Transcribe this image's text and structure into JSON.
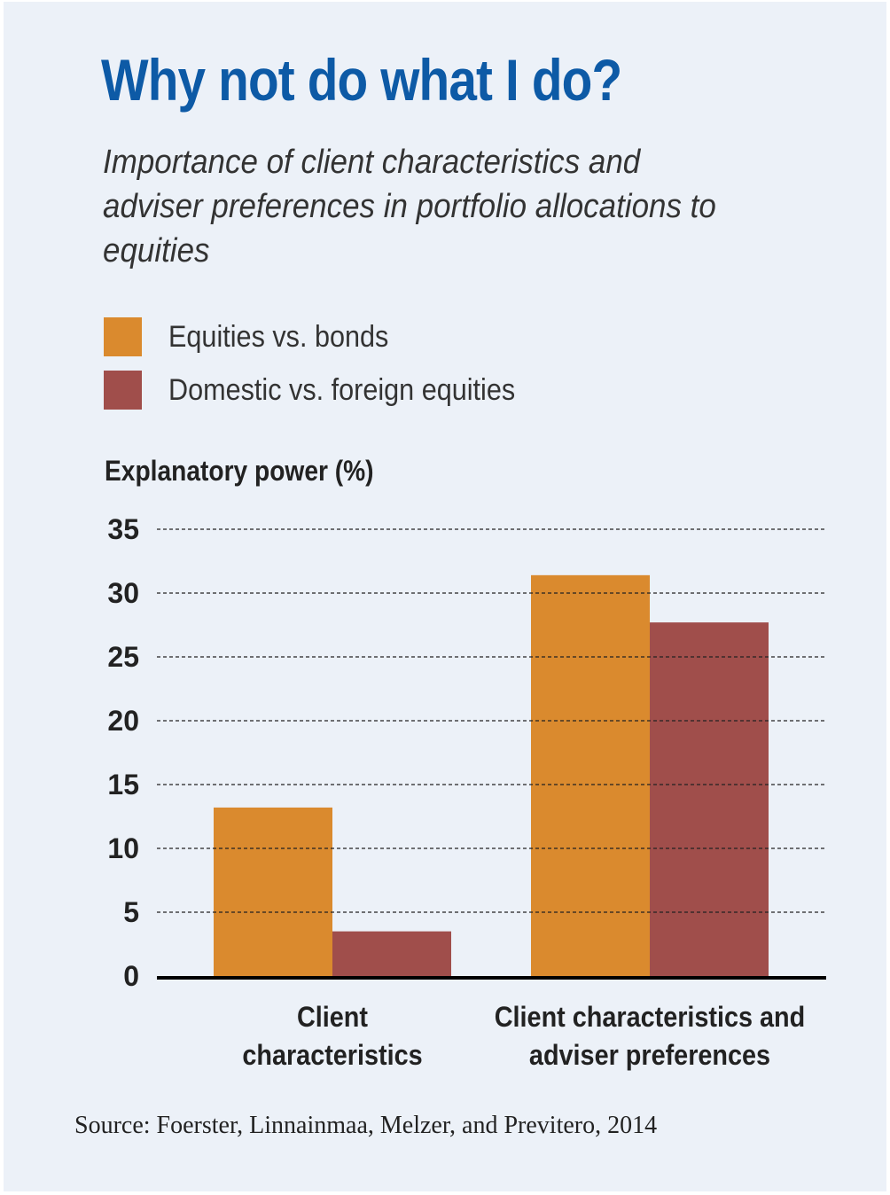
{
  "chart_data": {
    "type": "bar",
    "title": "Why not do what I do?",
    "subtitle": "Importance of client characteristics and adviser preferences in portfolio allocations to equities",
    "ylabel": "Explanatory power (%)",
    "xlabel": "",
    "ylim": [
      0,
      35
    ],
    "yticks": [
      "0",
      "5",
      "10",
      "15",
      "20",
      "25",
      "30",
      "35"
    ],
    "grid": true,
    "legend_placement": "top-left",
    "categories": [
      [
        "Client",
        "characteristics"
      ],
      [
        "Client characteristics and",
        "adviser preferences"
      ]
    ],
    "series": [
      {
        "name": "Equities vs. bonds",
        "color": "#da8a2e",
        "values": [
          13.2,
          31.4
        ]
      },
      {
        "name": "Domestic vs. foreign equities",
        "color": "#a04e4b",
        "values": [
          3.5,
          27.7
        ]
      }
    ],
    "source": "Source: Foerster, Linnainmaa, Melzer, and Previtero, 2014"
  }
}
